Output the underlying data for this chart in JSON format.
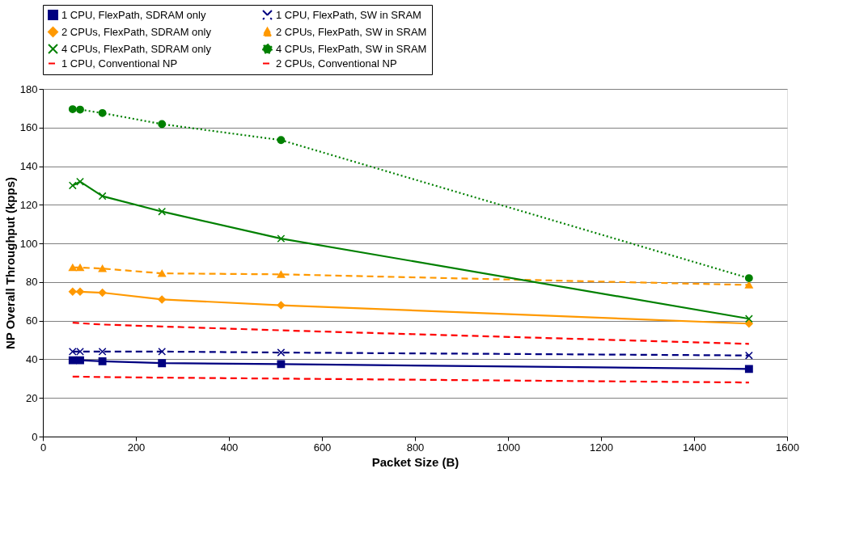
{
  "chart_data": {
    "type": "line",
    "xlabel": "Packet Size (B)",
    "ylabel": "NP Overall Throughput (kpps)",
    "x": [
      64,
      80,
      128,
      256,
      512,
      1518
    ],
    "series": [
      {
        "name": "1 CPU, FlexPath, SDRAM only",
        "color": "#000080",
        "marker": "square",
        "line_style": "solid",
        "values": [
          39.5,
          39.5,
          39,
          38,
          37.5,
          35
        ]
      },
      {
        "name": "1 CPU, FlexPath, SW in SRAM",
        "color": "#000080",
        "marker": "cross",
        "line_style": "dashed",
        "values": [
          44,
          44,
          44,
          44,
          43.5,
          42
        ]
      },
      {
        "name": "2 CPUs, FlexPath, SDRAM only",
        "color": "#ff9900",
        "marker": "diamond",
        "line_style": "solid",
        "values": [
          75,
          75,
          74.5,
          71,
          68,
          58.5
        ]
      },
      {
        "name": "2 CPUs, FlexPath, SW in SRAM",
        "color": "#ff9900",
        "marker": "triangle",
        "line_style": "dashed",
        "values": [
          87.5,
          87.5,
          87,
          84.5,
          84,
          78.5
        ]
      },
      {
        "name": "4 CPUs, FlexPath, SDRAM only",
        "color": "#008000",
        "marker": "cross",
        "line_style": "solid",
        "values": [
          130,
          132,
          124.5,
          116.5,
          102.5,
          61
        ]
      },
      {
        "name": "4 CPUs, FlexPath, SW in SRAM",
        "color": "#008000",
        "marker": "circle",
        "line_style": "dotted",
        "values": [
          169.5,
          169.3,
          167.5,
          161.8,
          153.5,
          82
        ]
      },
      {
        "name": "1 CPU, Conventional NP",
        "color": "#ff0000",
        "marker": "none",
        "line_style": "dashed",
        "values": [
          31,
          31,
          30.8,
          30.5,
          30,
          28
        ]
      },
      {
        "name": "2 CPUs, Conventional NP",
        "color": "#ff0000",
        "marker": "none",
        "line_style": "dashed",
        "values": [
          59,
          58.7,
          58,
          57,
          55,
          48
        ]
      }
    ],
    "xlim": [
      0,
      1600
    ],
    "xticks": [
      0,
      200,
      400,
      600,
      800,
      1000,
      1200,
      1400,
      1600
    ],
    "ylim": [
      0,
      180
    ],
    "yticks": [
      0,
      20,
      40,
      60,
      80,
      100,
      120,
      140,
      160,
      180
    ],
    "grid": "y",
    "legend": "top"
  }
}
